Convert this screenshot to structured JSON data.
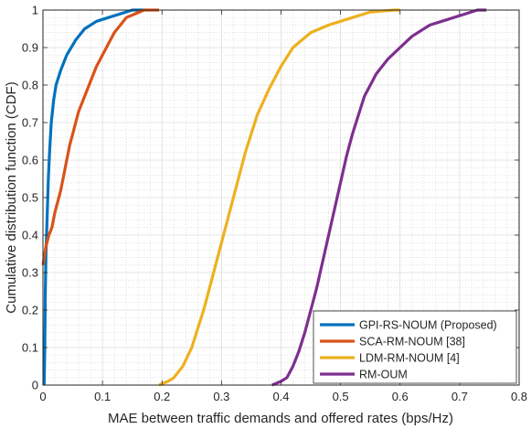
{
  "chart_data": {
    "type": "line",
    "title": "",
    "xlabel": "MAE between traffic demands and offered rates (bps/Hz)",
    "ylabel": "Cumulative distribution function (CDF)",
    "xlim": [
      0,
      0.8
    ],
    "ylim": [
      0,
      1
    ],
    "x_ticks": [
      "0",
      "0.1",
      "0.2",
      "0.3",
      "0.4",
      "0.5",
      "0.6",
      "0.7",
      "0.8"
    ],
    "y_ticks": [
      "0",
      "0.1",
      "0.2",
      "0.3",
      "0.4",
      "0.5",
      "0.6",
      "0.7",
      "0.8",
      "0.9",
      "1"
    ],
    "grid": true,
    "minor_grid": true,
    "legend_position": "bottom-right",
    "series": [
      {
        "name": "GPI-RS-NOUM (Proposed)",
        "color": "#0072BD",
        "points": [
          [
            0.002,
            0
          ],
          [
            0.003,
            0.1
          ],
          [
            0.004,
            0.25
          ],
          [
            0.005,
            0.35
          ],
          [
            0.007,
            0.45
          ],
          [
            0.009,
            0.55
          ],
          [
            0.011,
            0.62
          ],
          [
            0.014,
            0.7
          ],
          [
            0.018,
            0.76
          ],
          [
            0.022,
            0.8
          ],
          [
            0.03,
            0.84
          ],
          [
            0.04,
            0.88
          ],
          [
            0.055,
            0.92
          ],
          [
            0.07,
            0.95
          ],
          [
            0.09,
            0.97
          ],
          [
            0.11,
            0.98
          ],
          [
            0.13,
            0.99
          ],
          [
            0.15,
            1.0
          ],
          [
            0.17,
            1.0
          ]
        ]
      },
      {
        "name": "SCA-RM-NOUM [38]",
        "color": "#D95319",
        "points": [
          [
            0.0,
            0.32
          ],
          [
            0.005,
            0.37
          ],
          [
            0.01,
            0.4
          ],
          [
            0.015,
            0.42
          ],
          [
            0.02,
            0.46
          ],
          [
            0.025,
            0.49
          ],
          [
            0.03,
            0.52
          ],
          [
            0.035,
            0.56
          ],
          [
            0.04,
            0.6
          ],
          [
            0.045,
            0.64
          ],
          [
            0.05,
            0.67
          ],
          [
            0.055,
            0.7
          ],
          [
            0.06,
            0.73
          ],
          [
            0.07,
            0.77
          ],
          [
            0.08,
            0.81
          ],
          [
            0.09,
            0.85
          ],
          [
            0.1,
            0.88
          ],
          [
            0.11,
            0.91
          ],
          [
            0.12,
            0.94
          ],
          [
            0.13,
            0.96
          ],
          [
            0.14,
            0.98
          ],
          [
            0.155,
            0.99
          ],
          [
            0.17,
            1.0
          ],
          [
            0.195,
            1.0
          ]
        ]
      },
      {
        "name": "LDM-RM-NOUM [4]",
        "color": "#EDB120",
        "points": [
          [
            0.195,
            0.0
          ],
          [
            0.21,
            0.01
          ],
          [
            0.22,
            0.02
          ],
          [
            0.235,
            0.05
          ],
          [
            0.25,
            0.1
          ],
          [
            0.26,
            0.15
          ],
          [
            0.27,
            0.2
          ],
          [
            0.28,
            0.26
          ],
          [
            0.29,
            0.32
          ],
          [
            0.3,
            0.38
          ],
          [
            0.31,
            0.44
          ],
          [
            0.32,
            0.5
          ],
          [
            0.33,
            0.56
          ],
          [
            0.34,
            0.62
          ],
          [
            0.35,
            0.67
          ],
          [
            0.36,
            0.72
          ],
          [
            0.38,
            0.79
          ],
          [
            0.4,
            0.85
          ],
          [
            0.42,
            0.9
          ],
          [
            0.45,
            0.94
          ],
          [
            0.48,
            0.96
          ],
          [
            0.5,
            0.97
          ],
          [
            0.52,
            0.98
          ],
          [
            0.55,
            0.995
          ],
          [
            0.59,
            1.0
          ],
          [
            0.6,
            1.0
          ]
        ]
      },
      {
        "name": "RM-OUM",
        "color": "#7E2F8E",
        "points": [
          [
            0.385,
            0.0
          ],
          [
            0.4,
            0.01
          ],
          [
            0.41,
            0.02
          ],
          [
            0.42,
            0.05
          ],
          [
            0.43,
            0.09
          ],
          [
            0.44,
            0.14
          ],
          [
            0.45,
            0.2
          ],
          [
            0.46,
            0.26
          ],
          [
            0.47,
            0.33
          ],
          [
            0.48,
            0.4
          ],
          [
            0.49,
            0.47
          ],
          [
            0.5,
            0.54
          ],
          [
            0.51,
            0.61
          ],
          [
            0.52,
            0.67
          ],
          [
            0.53,
            0.72
          ],
          [
            0.54,
            0.77
          ],
          [
            0.56,
            0.83
          ],
          [
            0.58,
            0.87
          ],
          [
            0.6,
            0.9
          ],
          [
            0.62,
            0.93
          ],
          [
            0.65,
            0.96
          ],
          [
            0.67,
            0.97
          ],
          [
            0.69,
            0.98
          ],
          [
            0.71,
            0.99
          ],
          [
            0.73,
            1.0
          ],
          [
            0.745,
            1.0
          ]
        ]
      }
    ]
  }
}
